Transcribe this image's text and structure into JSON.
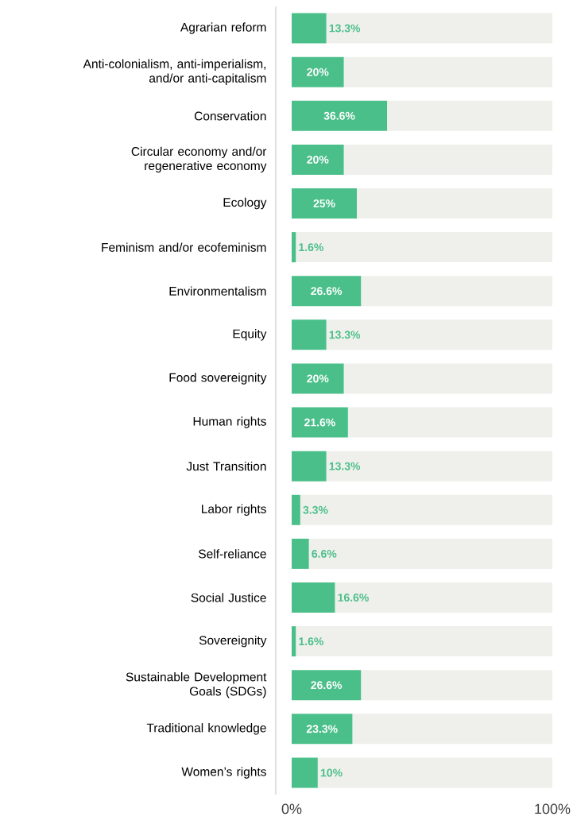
{
  "chart_data": {
    "type": "bar",
    "orientation": "horizontal",
    "stacked": true,
    "categories": [
      "Agrarian reform",
      "Anti-colonialism, anti-imperialism, and/or anti-capitalism",
      "Conservation",
      "Circular economy and/or regenerative economy",
      "Ecology",
      "Feminism and/or ecofeminism",
      "Environmentalism",
      "Equity",
      "Food sovereignity",
      "Human rights",
      "Just Transition",
      "Labor rights",
      "Self-reliance",
      "Social Justice",
      "Sovereignity",
      "Sustainable Development Goals (SDGs)",
      "Traditional knowledge",
      "Women’s rights"
    ],
    "series": [
      {
        "color": "#4bbf8a",
        "values": [
          13.3,
          20,
          36.6,
          20,
          25,
          1.6,
          26.6,
          13.3,
          20,
          21.6,
          13.3,
          3.3,
          6.6,
          16.6,
          1.6,
          26.6,
          23.3,
          10
        ],
        "value_labels": [
          "13.3%",
          "20%",
          "36.6%",
          "20%",
          "25%",
          "1.6%",
          "26.6%",
          "13.3%",
          "20%",
          "21.6%",
          "13.3%",
          "3.3%",
          "6.6%",
          "16.6%",
          "1.6%",
          "26.6%",
          "23.3%",
          "10%"
        ]
      },
      {
        "color": "#eff0eb",
        "values": [
          86.7,
          80,
          63.4,
          80,
          75,
          98.4,
          73.4,
          86.7,
          80,
          78.4,
          86.7,
          96.7,
          93.4,
          83.4,
          98.4,
          73.4,
          76.7,
          90
        ]
      }
    ],
    "xlim": [
      0,
      100
    ],
    "xticks": [
      {
        "value": 0,
        "label": "0%"
      },
      {
        "value": 100,
        "label": "100%"
      }
    ],
    "grid": false
  }
}
